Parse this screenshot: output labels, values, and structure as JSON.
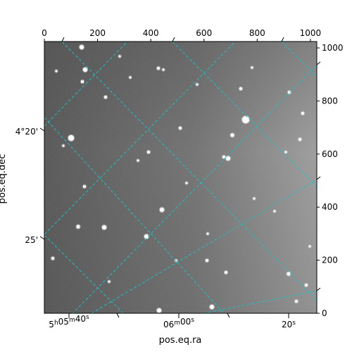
{
  "chart_data": {
    "type": "image",
    "xlabel": "pos.eq.ra",
    "ylabel": "pos.eq.dec",
    "pixel_xlim": [
      0,
      1024
    ],
    "pixel_ylim": [
      0,
      1024
    ],
    "pixel_x_ticks": [
      "0",
      "200",
      "400",
      "600",
      "800",
      "1000"
    ],
    "pixel_y_ticks": [
      "0",
      "200",
      "400",
      "600",
      "800",
      "1000"
    ],
    "ra_ticks": [
      {
        "h": "5",
        "m": "05",
        "s": "40"
      },
      {
        "h": "",
        "m": "06",
        "s": "00"
      },
      {
        "h": "",
        "m": "",
        "s": "20"
      }
    ],
    "dec_ticks": [
      "4°20'",
      "25'"
    ],
    "grid": true,
    "grid_color": "#19c3c3",
    "colormap": "grayscale"
  }
}
